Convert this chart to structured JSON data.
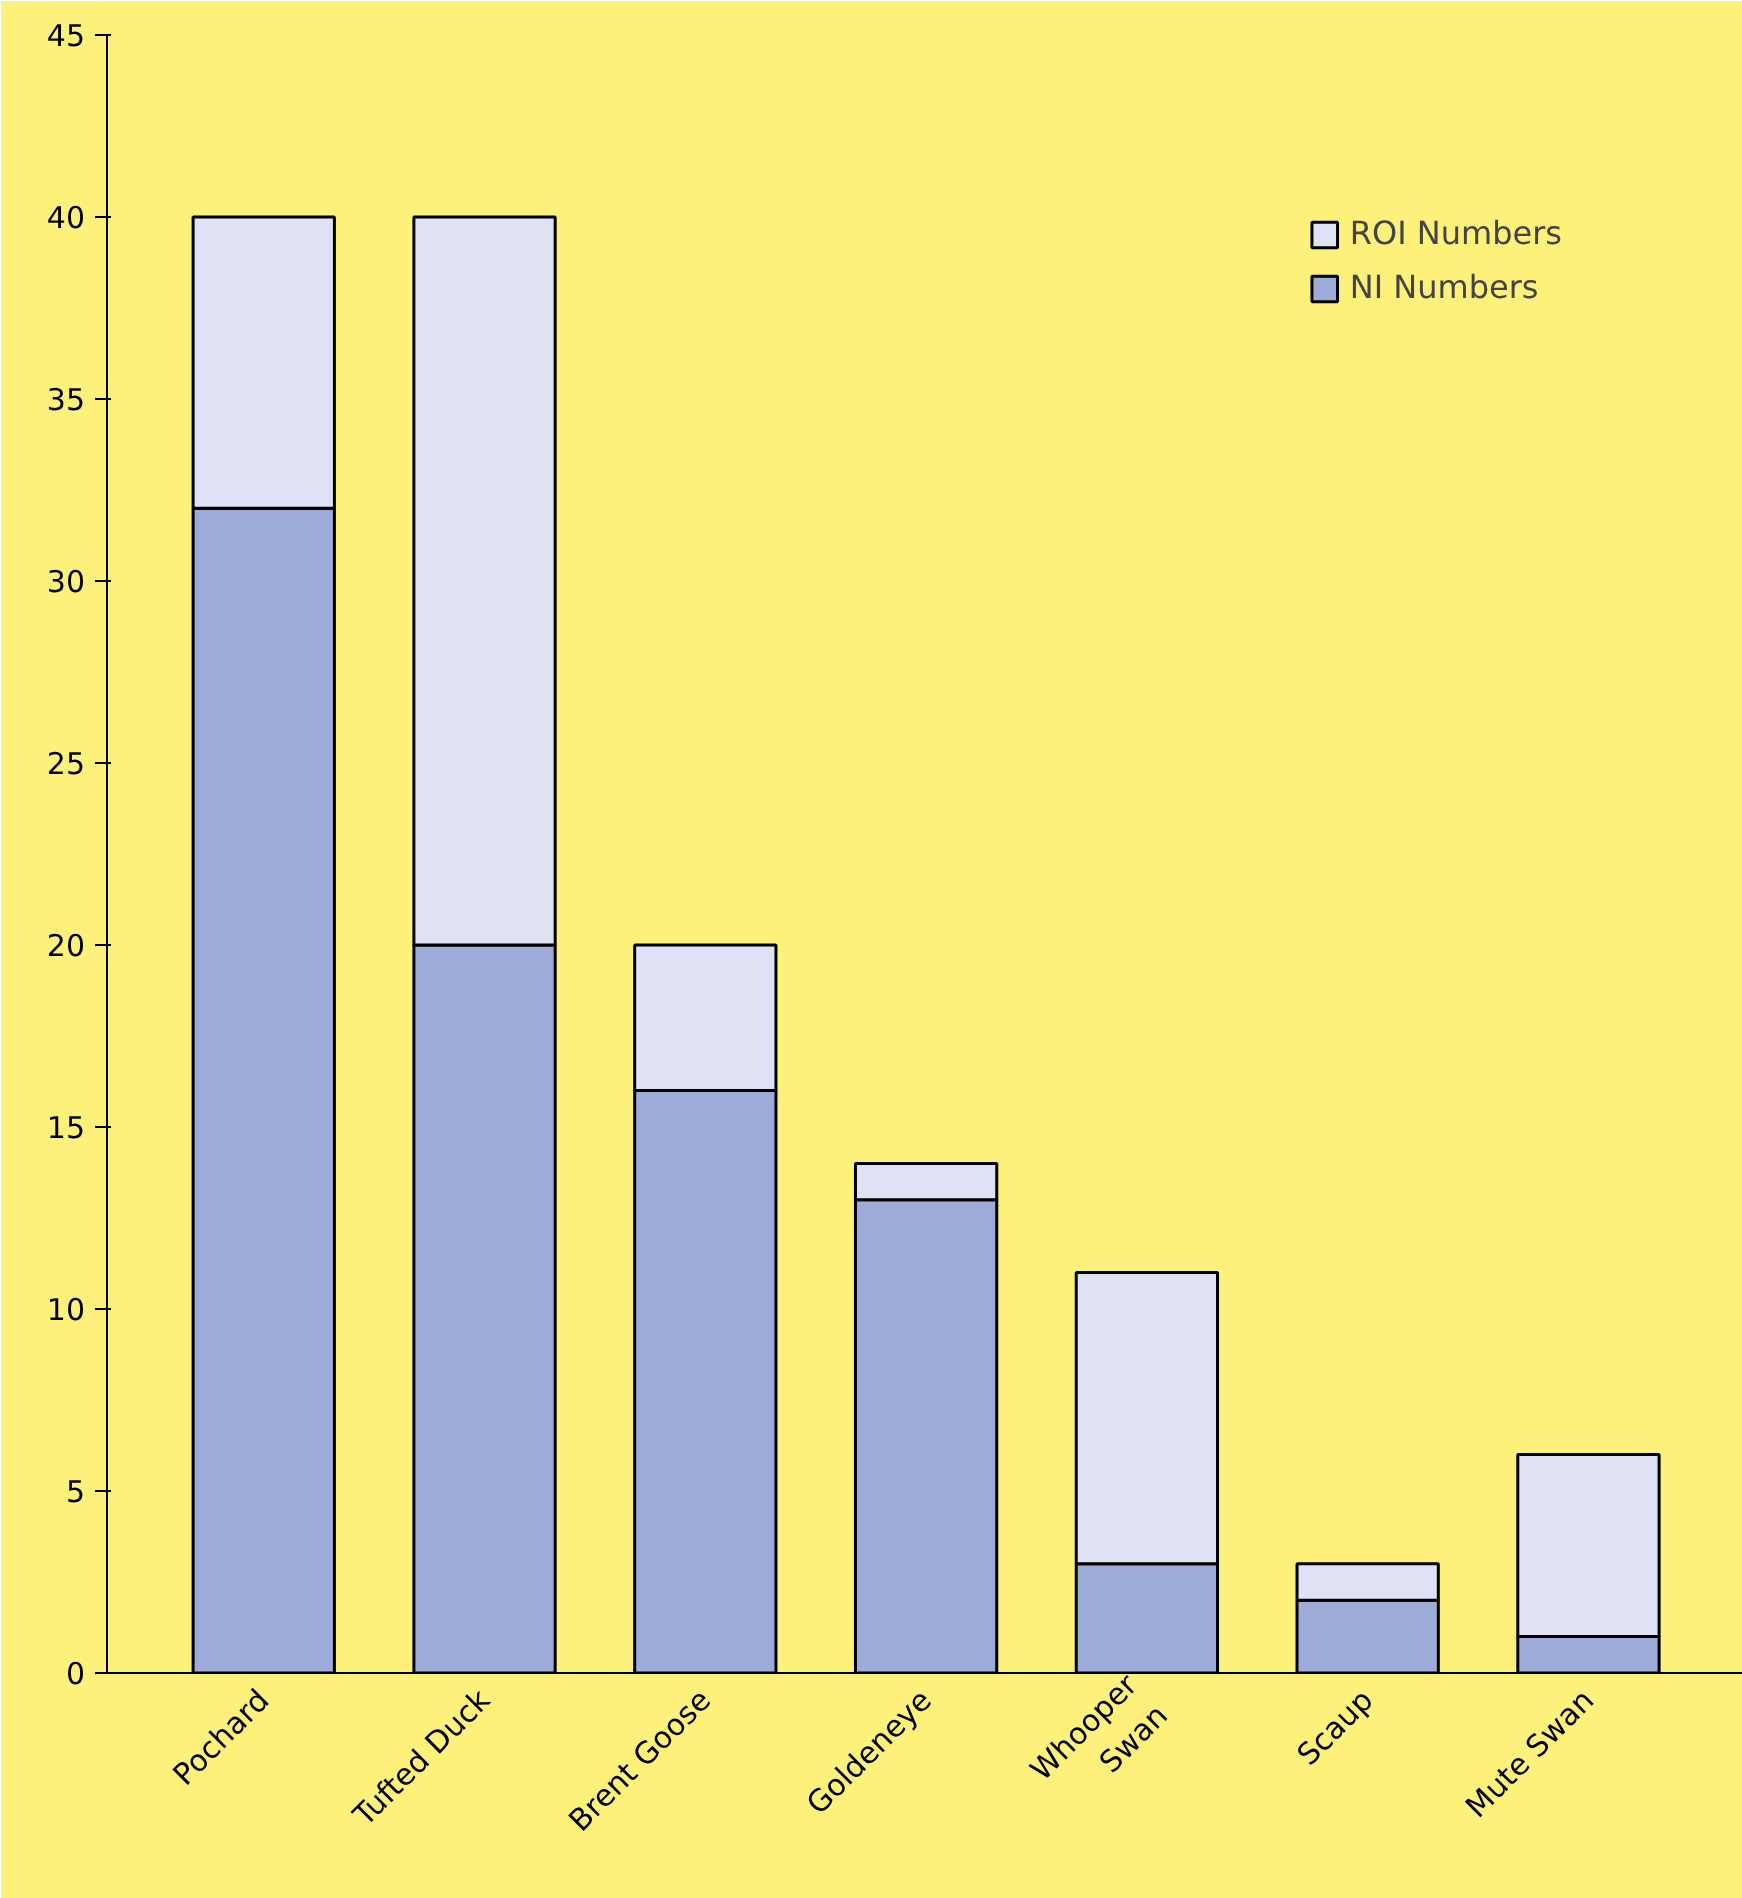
{
  "chart_data": {
    "type": "bar",
    "stacked": true,
    "categories": [
      "Pochard",
      "Tufted Duck",
      "Brent Goose",
      "Goldeneye",
      "Whooper\nSwan",
      "Scaup",
      "Mute Swan"
    ],
    "series": [
      {
        "name": "NI Numbers",
        "color": "#9dabd8",
        "values": [
          32,
          20,
          16,
          13,
          3,
          2,
          1
        ]
      },
      {
        "name": "ROI Numbers",
        "color": "#dfe2f4",
        "values": [
          8,
          20,
          4,
          1,
          8,
          1,
          5
        ]
      }
    ],
    "ylim": [
      0,
      45
    ],
    "yticks": [
      0,
      5,
      10,
      15,
      20,
      25,
      30,
      35,
      40,
      45
    ],
    "grid": false,
    "legend": "top right"
  }
}
